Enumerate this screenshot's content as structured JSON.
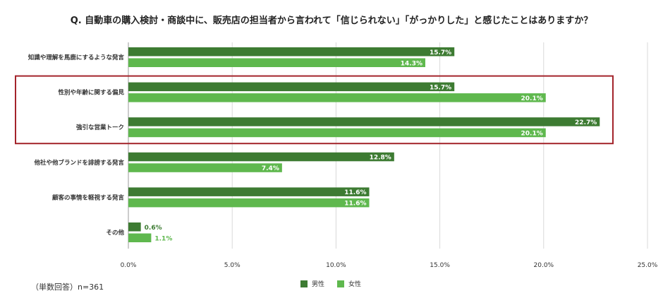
{
  "chart_data": {
    "type": "bar",
    "orientation": "horizontal",
    "title": "Q. 自動車の購入検討・商談中に、販売店の担当者から言われて「信じられない」「がっかりした」と感じたことはありますか？",
    "categories": [
      "知識や理解を馬鹿にするような発言",
      "性別や年齢に関する偏見",
      "強引な営業トーク",
      "他社や他ブランドを誹謗する発言",
      "顧客の事情を軽視する発言",
      "その他"
    ],
    "series": [
      {
        "name": "男性",
        "color": "#3d7b32",
        "values": [
          15.7,
          15.7,
          22.7,
          12.8,
          11.6,
          0.6
        ],
        "labels": [
          "15.7%",
          "15.7%",
          "22.7%",
          "12.8%",
          "11.6%",
          "0.6%"
        ]
      },
      {
        "name": "女性",
        "color": "#5fb84e",
        "values": [
          14.3,
          20.1,
          20.1,
          7.4,
          11.6,
          1.1
        ],
        "labels": [
          "14.3%",
          "20.1%",
          "20.1%",
          "7.4%",
          "11.6%",
          "1.1%"
        ]
      }
    ],
    "xlim": [
      0,
      25
    ],
    "xticks": [
      0,
      5,
      10,
      15,
      20,
      25
    ],
    "xtick_labels": [
      "0.0%",
      "5.0%",
      "10.0%",
      "15.0%",
      "20.0%",
      "25.0%"
    ],
    "grid": true,
    "legend_position": "bottom",
    "highlight_categories": [
      "性別や年齢に関する偏見",
      "強引な営業トーク"
    ],
    "highlight_color": "#a3242b",
    "footnote": "（単数回答）n=361"
  }
}
